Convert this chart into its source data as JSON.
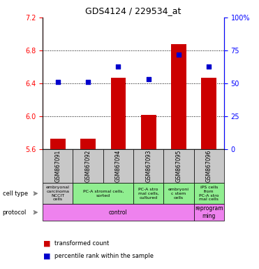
{
  "title": "GDS4124 / 229534_at",
  "samples": [
    "GSM867091",
    "GSM867092",
    "GSM867094",
    "GSM867093",
    "GSM867095",
    "GSM867096"
  ],
  "transformed_counts": [
    5.73,
    5.73,
    6.47,
    6.02,
    6.88,
    6.47
  ],
  "percentile_ranks": [
    51,
    51,
    63,
    53,
    72,
    63
  ],
  "ylim_left": [
    5.6,
    7.2
  ],
  "ylim_right": [
    0,
    100
  ],
  "yticks_left": [
    5.6,
    6.0,
    6.4,
    6.8,
    7.2
  ],
  "yticks_right": [
    0,
    25,
    50,
    75,
    100
  ],
  "ytick_labels_right": [
    "0",
    "25",
    "50",
    "75",
    "100%"
  ],
  "bar_color": "#cc0000",
  "dot_color": "#0000cc",
  "gsm_row_color": "#c8c8c8",
  "cell_type_spans": [
    {
      "label": "embryonal\ncarcinoma\nNCCIT\ncells",
      "color": "#c8c8c8",
      "cols": [
        0,
        0
      ]
    },
    {
      "label": "PC-A stromal cells,\nsorted",
      "color": "#90ee90",
      "cols": [
        1,
        2
      ]
    },
    {
      "label": "PC-A stro\nmal cells,\ncultured",
      "color": "#90ee90",
      "cols": [
        3,
        3
      ]
    },
    {
      "label": "embryoni\nc stem\ncells",
      "color": "#90ee90",
      "cols": [
        4,
        4
      ]
    },
    {
      "label": "iPS cells\nfrom\nPC-A stro\nmal cells",
      "color": "#90ee90",
      "cols": [
        5,
        5
      ]
    }
  ],
  "protocol_spans": [
    {
      "label": "control",
      "color": "#ee82ee",
      "cols": [
        0,
        4
      ]
    },
    {
      "label": "reprogram\nming",
      "color": "#ee82ee",
      "cols": [
        5,
        5
      ]
    }
  ],
  "background_color": "#ffffff"
}
